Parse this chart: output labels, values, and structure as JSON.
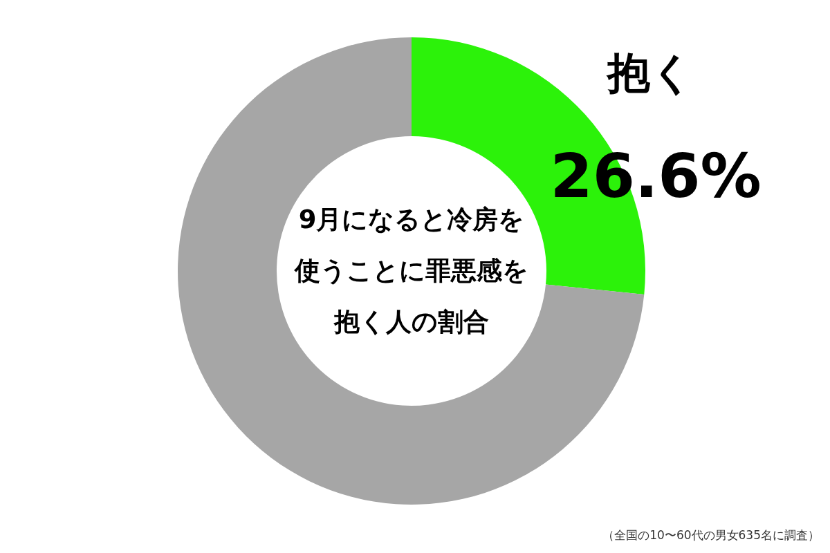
{
  "chart_data": {
    "type": "donut",
    "title": "9月になると冷房を使うことに罪悪感を抱く人の割合",
    "categories": [
      "抱く",
      null
    ],
    "values": [
      26.6,
      73.4
    ],
    "value_labels": [
      "26.6%",
      null
    ],
    "colors": [
      "#2cf20a",
      "#a6a6a6"
    ],
    "legend": false,
    "annotations": [
      "（全国の10〜60代の男女635名に調査）"
    ]
  }
}
